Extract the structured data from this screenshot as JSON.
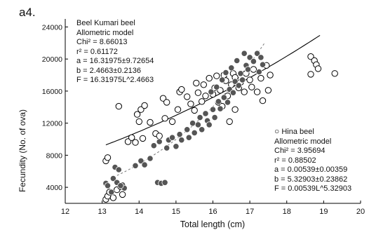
{
  "panel_label": "a4.",
  "annotation_left": {
    "lines": [
      "Beel Kumari beel",
      "Allometric model",
      "Chi² = 8.66013",
      "r² = 0.61172",
      "a = 16.31975±9.72654",
      "b = 2.4663±0.2136",
      "F = 16.31975L^2.4663"
    ]
  },
  "annotation_right": {
    "lines": [
      "Hina beel",
      "Allometric model",
      "Chi² = 3.95694",
      "r² = 0.88502",
      "a = 0.00539±0.00359",
      "b = 5.32903±0.23862",
      "F = 0.00539L^5.32903"
    ]
  },
  "chart_data": {
    "type": "scatter",
    "xlabel": "Total length (cm)",
    "ylabel": "Fecundity (No. of ova)",
    "xlim": [
      12,
      20
    ],
    "ylim": [
      2000,
      25000
    ],
    "xticks": [
      12,
      13,
      14,
      15,
      16,
      17,
      18,
      19,
      20
    ],
    "yticks": [
      4000,
      8000,
      12000,
      16000,
      20000,
      24000
    ],
    "grid": false,
    "legend": "none",
    "series": [
      {
        "name": "Beel Kumari beel",
        "marker": "open-circle",
        "color": "#000000",
        "fit": {
          "a": 16.31975,
          "b": 2.4663,
          "x_range": [
            13.1,
            18.9
          ],
          "style": "solid"
        },
        "points": [
          [
            13.1,
            2500
          ],
          [
            13.15,
            2900
          ],
          [
            13.2,
            3400
          ],
          [
            13.3,
            2700
          ],
          [
            13.4,
            3700
          ],
          [
            13.5,
            4100
          ],
          [
            13.55,
            3100
          ],
          [
            13.1,
            7300
          ],
          [
            13.15,
            7700
          ],
          [
            13.45,
            14100
          ],
          [
            13.7,
            9700
          ],
          [
            13.8,
            10200
          ],
          [
            13.9,
            9600
          ],
          [
            13.95,
            13100
          ],
          [
            14.0,
            12200
          ],
          [
            14.05,
            13700
          ],
          [
            14.15,
            14200
          ],
          [
            14.1,
            10100
          ],
          [
            14.3,
            12100
          ],
          [
            14.45,
            10700
          ],
          [
            14.55,
            10400
          ],
          [
            14.7,
            12600
          ],
          [
            14.65,
            15100
          ],
          [
            14.75,
            14600
          ],
          [
            14.9,
            12200
          ],
          [
            15.05,
            13700
          ],
          [
            15.1,
            15900
          ],
          [
            15.15,
            16200
          ],
          [
            15.3,
            15300
          ],
          [
            15.4,
            14400
          ],
          [
            15.5,
            13600
          ],
          [
            15.55,
            17000
          ],
          [
            15.6,
            15800
          ],
          [
            15.7,
            14700
          ],
          [
            15.75,
            16800
          ],
          [
            15.8,
            15400
          ],
          [
            15.9,
            17600
          ],
          [
            16.0,
            15600
          ],
          [
            16.05,
            16400
          ],
          [
            16.1,
            17900
          ],
          [
            16.15,
            14600
          ],
          [
            16.2,
            16100
          ],
          [
            16.3,
            18000
          ],
          [
            16.35,
            17300
          ],
          [
            16.4,
            15400
          ],
          [
            16.5,
            16800
          ],
          [
            16.55,
            18200
          ],
          [
            16.6,
            17700
          ],
          [
            16.7,
            16400
          ],
          [
            16.75,
            17100
          ],
          [
            16.85,
            15900
          ],
          [
            16.9,
            18200
          ],
          [
            17.0,
            17400
          ],
          [
            17.05,
            16500
          ],
          [
            17.1,
            18700
          ],
          [
            17.2,
            15900
          ],
          [
            17.3,
            17600
          ],
          [
            17.35,
            14800
          ],
          [
            17.45,
            19200
          ],
          [
            17.5,
            16100
          ],
          [
            17.55,
            18000
          ],
          [
            18.65,
            20300
          ],
          [
            18.75,
            19800
          ],
          [
            18.8,
            19300
          ],
          [
            18.65,
            18100
          ],
          [
            18.85,
            18800
          ],
          [
            19.3,
            18200
          ],
          [
            16.45,
            12200
          ],
          [
            16.6,
            13700
          ],
          [
            16.25,
            14100
          ]
        ]
      },
      {
        "name": "Hina beel",
        "marker": "filled-circle",
        "color": "#555555",
        "fit": {
          "a": 0.00539,
          "b": 5.32903,
          "x_range": [
            13.3,
            17.4
          ],
          "style": "dashed"
        },
        "points": [
          [
            13.1,
            4500
          ],
          [
            13.15,
            4200
          ],
          [
            13.25,
            3400
          ],
          [
            13.3,
            5100
          ],
          [
            13.4,
            4600
          ],
          [
            13.35,
            6500
          ],
          [
            13.45,
            6200
          ],
          [
            13.55,
            4300
          ],
          [
            13.6,
            3900
          ],
          [
            13.5,
            4200
          ],
          [
            13.9,
            6700
          ],
          [
            14.05,
            7300
          ],
          [
            14.15,
            6800
          ],
          [
            14.3,
            7600
          ],
          [
            14.5,
            4600
          ],
          [
            14.6,
            4500
          ],
          [
            14.7,
            4600
          ],
          [
            14.4,
            9200
          ],
          [
            14.55,
            9700
          ],
          [
            14.75,
            8900
          ],
          [
            14.8,
            9900
          ],
          [
            14.9,
            10200
          ],
          [
            15.0,
            9100
          ],
          [
            15.1,
            10600
          ],
          [
            15.15,
            9900
          ],
          [
            15.3,
            11200
          ],
          [
            15.35,
            10200
          ],
          [
            15.45,
            12000
          ],
          [
            15.5,
            10800
          ],
          [
            15.6,
            11800
          ],
          [
            15.65,
            12700
          ],
          [
            15.7,
            11200
          ],
          [
            15.8,
            13200
          ],
          [
            15.85,
            12300
          ],
          [
            15.9,
            11800
          ],
          [
            16.0,
            13700
          ],
          [
            16.05,
            12700
          ],
          [
            16.15,
            14700
          ],
          [
            16.2,
            13800
          ],
          [
            16.3,
            15200
          ],
          [
            16.4,
            14600
          ],
          [
            16.45,
            16200
          ],
          [
            16.55,
            15800
          ],
          [
            16.6,
            17200
          ],
          [
            16.7,
            16700
          ],
          [
            16.75,
            18200
          ],
          [
            16.8,
            17400
          ],
          [
            16.9,
            19200
          ],
          [
            16.95,
            18700
          ],
          [
            17.0,
            20200
          ],
          [
            17.1,
            19700
          ],
          [
            17.2,
            20700
          ],
          [
            17.3,
            20200
          ],
          [
            17.35,
            19300
          ],
          [
            17.25,
            18400
          ],
          [
            16.85,
            20700
          ],
          [
            16.65,
            19800
          ],
          [
            16.5,
            18900
          ],
          [
            16.35,
            18300
          ],
          [
            16.25,
            17400
          ],
          [
            16.1,
            16500
          ],
          [
            15.95,
            15900
          ]
        ]
      }
    ]
  }
}
